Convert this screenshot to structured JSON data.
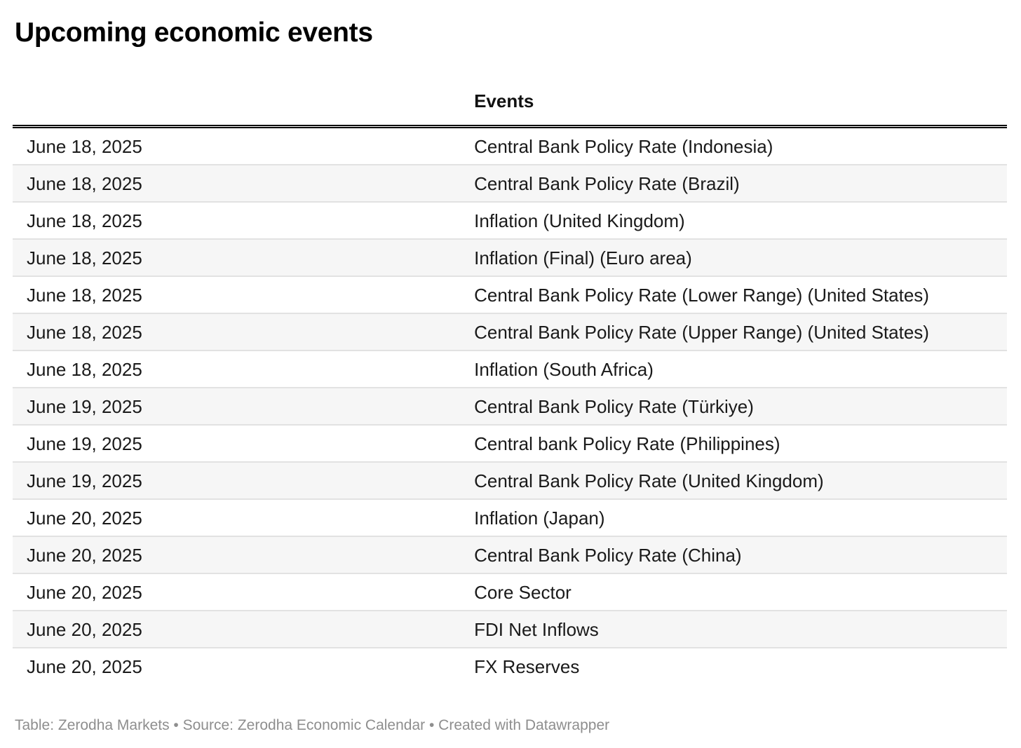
{
  "title": "Upcoming economic events",
  "chart_data": {
    "type": "table",
    "title": "Upcoming economic events",
    "columns": [
      "",
      "Events"
    ],
    "rows": [
      [
        "June 18, 2025",
        "Central Bank Policy Rate (Indonesia)"
      ],
      [
        "June 18, 2025",
        "Central Bank Policy Rate (Brazil)"
      ],
      [
        "June 18, 2025",
        "Inflation (United Kingdom)"
      ],
      [
        "June 18, 2025",
        "Inflation (Final) (Euro area)"
      ],
      [
        "June 18, 2025",
        "Central Bank Policy Rate (Lower Range) (United States)"
      ],
      [
        "June 18, 2025",
        "Central Bank Policy Rate (Upper Range) (United States)"
      ],
      [
        "June 18, 2025",
        "Inflation (South Africa)"
      ],
      [
        "June 19, 2025",
        "Central Bank Policy Rate (Türkiye)"
      ],
      [
        "June 19, 2025",
        "Central bank Policy Rate (Philippines)"
      ],
      [
        "June 19, 2025",
        "Central Bank Policy Rate (United Kingdom)"
      ],
      [
        "June 20, 2025",
        "Inflation (Japan)"
      ],
      [
        "June 20, 2025",
        "Central Bank Policy Rate (China)"
      ],
      [
        "June 20, 2025",
        "Core Sector"
      ],
      [
        "June 20, 2025",
        "FDI Net Inflows"
      ],
      [
        "June 20, 2025",
        "FX Reserves"
      ]
    ],
    "footer": "Table: Zerodha Markets • Source: Zerodha Economic Calendar • Created with Datawrapper",
    "layout": {
      "striped_rows": true,
      "grid": "horizontal-row-borders",
      "header_border": "double-black"
    }
  },
  "colors": {
    "stripe": "#f6f6f6",
    "row_border": "#e2e2e2",
    "header_border": "#0a0a0a",
    "title_text": "#000000",
    "body_text": "#1a1a1a",
    "footer_text": "#8e8e8e",
    "background": "#ffffff"
  }
}
